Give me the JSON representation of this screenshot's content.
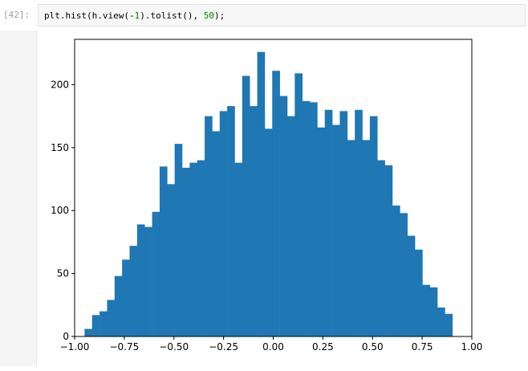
{
  "cell": {
    "prompt": "[42]:",
    "code_tokens": [
      {
        "t": "plt",
        "c": "name"
      },
      {
        "t": ".",
        "c": "op"
      },
      {
        "t": "hist",
        "c": "name"
      },
      {
        "t": "(",
        "c": "op"
      },
      {
        "t": "h",
        "c": "name"
      },
      {
        "t": ".",
        "c": "op"
      },
      {
        "t": "view",
        "c": "name"
      },
      {
        "t": "(",
        "c": "op"
      },
      {
        "t": "-",
        "c": "op"
      },
      {
        "t": "1",
        "c": "num"
      },
      {
        "t": ").",
        "c": "op"
      },
      {
        "t": "tolist",
        "c": "name"
      },
      {
        "t": "(), ",
        "c": "op"
      },
      {
        "t": "50",
        "c": "num"
      },
      {
        "t": ");",
        "c": "op"
      }
    ]
  },
  "chart_data": {
    "type": "bar",
    "title": "",
    "xlabel": "",
    "ylabel": "",
    "bar_color": "#1f77b4",
    "xlim": [
      -1.0,
      1.0
    ],
    "ylim": [
      0,
      236
    ],
    "x_ticks": [
      -1.0,
      -0.75,
      -0.5,
      -0.25,
      0.0,
      0.25,
      0.5,
      0.75,
      1.0
    ],
    "x_tick_labels": [
      "−1.00",
      "−0.75",
      "−0.50",
      "−0.25",
      "0.00",
      "0.25",
      "0.50",
      "0.75",
      "1.00"
    ],
    "y_ticks": [
      0,
      50,
      100,
      150,
      200
    ],
    "y_tick_labels": [
      "0",
      "50",
      "100",
      "150",
      "200"
    ],
    "bin_start": -0.95,
    "bin_end": 0.94,
    "values": [
      6,
      17,
      20,
      29,
      48,
      61,
      72,
      89,
      87,
      99,
      135,
      121,
      153,
      134,
      138,
      140,
      175,
      163,
      179,
      183,
      138,
      207,
      183,
      226,
      165,
      211,
      191,
      175,
      209,
      187,
      186,
      166,
      180,
      168,
      179,
      156,
      180,
      156,
      175,
      140,
      136,
      104,
      98,
      80,
      69,
      41,
      39,
      23,
      18,
      0
    ]
  }
}
